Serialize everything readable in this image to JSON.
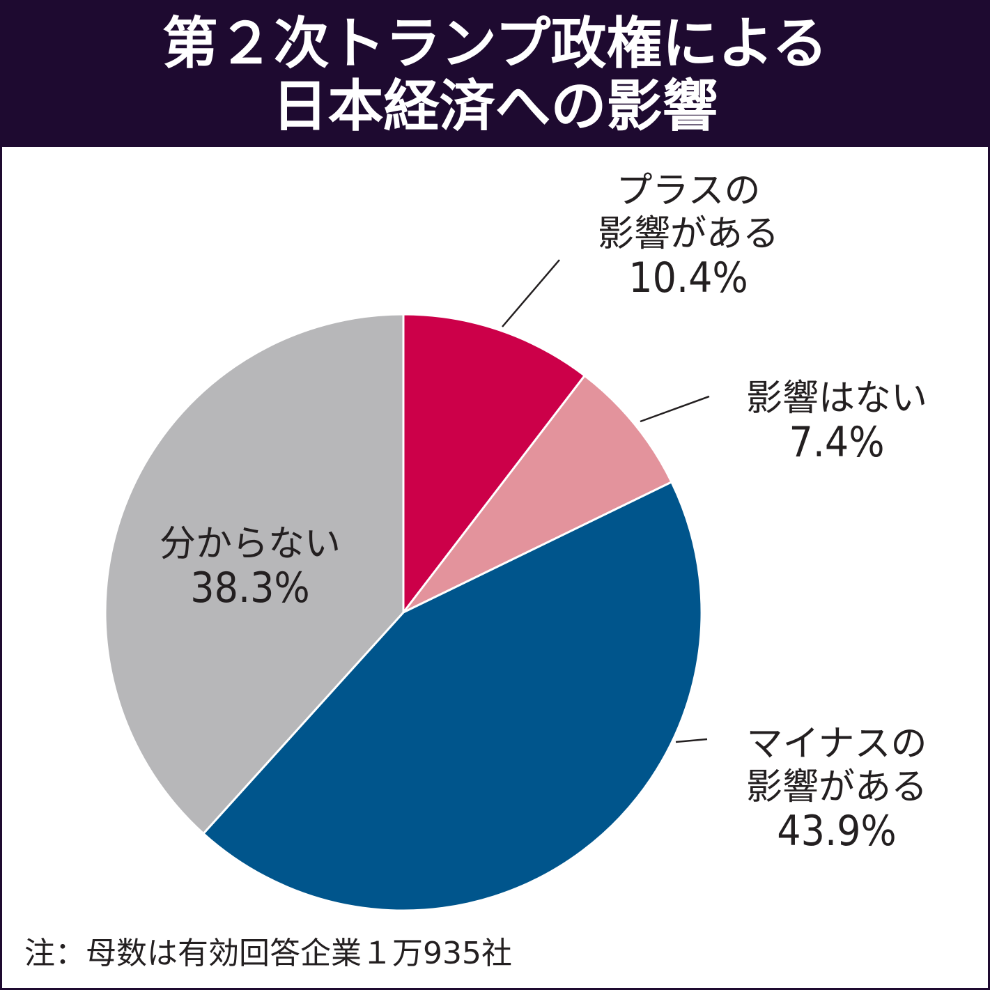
{
  "title": {
    "line1": "第２次トランプ政権による",
    "line2": "日本経済への影響"
  },
  "colors": {
    "title_background": "#1e0a30",
    "title_text": "#ffffff",
    "slice_separator": "#ffffff",
    "leader_line": "#231f20",
    "label_text": "#231f20"
  },
  "chart_data": {
    "type": "pie",
    "start_angle": "12 o'clock",
    "direction": "clockwise",
    "slices": [
      {
        "label_lines": [
          "プラスの",
          "影響がある"
        ],
        "value": 10.4,
        "value_label": "10.4%",
        "color": "#cc0049"
      },
      {
        "label_lines": [
          "影響はない"
        ],
        "value": 7.4,
        "value_label": "7.4%",
        "color": "#e3939c"
      },
      {
        "label_lines": [
          "マイナスの",
          "影響がある"
        ],
        "value": 43.9,
        "value_label": "43.9%",
        "color": "#00558c"
      },
      {
        "label_lines": [
          "分からない"
        ],
        "value": 38.3,
        "value_label": "38.3%",
        "color": "#b7b7b9"
      }
    ]
  },
  "footnote": "注：母数は有効回答企業１万935社"
}
